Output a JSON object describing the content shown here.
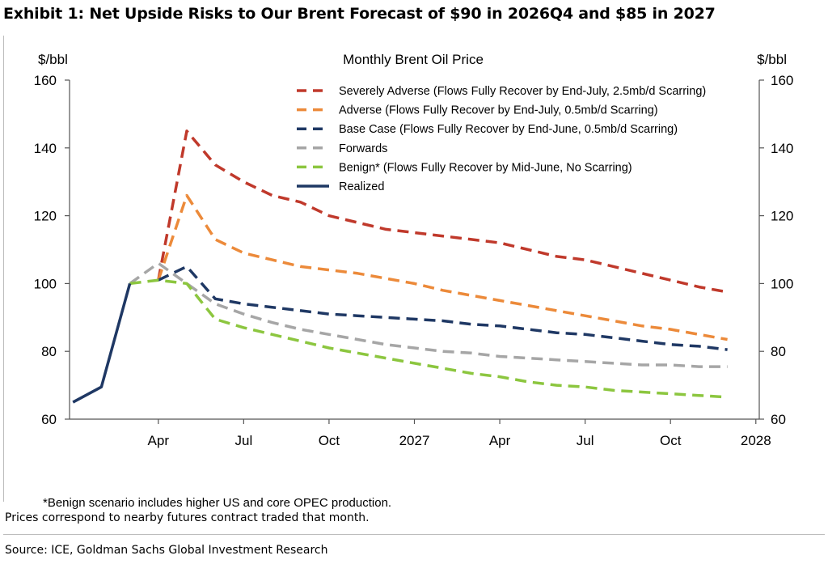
{
  "exhibit_title": "Exhibit 1: Net Upside Risks to Our Brent Forecast of $90 in 2026Q4 and $85 in 2027",
  "footnote": "*Benign scenario includes higher US and core OPEC production.",
  "note": "Prices correspond to nearby futures contract traded that month.",
  "source": "Source: ICE, Goldman Sachs Global Investment Research",
  "chart_data": {
    "type": "line",
    "title": "Monthly Brent Oil Price",
    "ylabel_left": "$/bbl",
    "ylabel_right": "$/bbl",
    "ylim": [
      60,
      160
    ],
    "yticks": [
      60,
      80,
      100,
      120,
      140,
      160
    ],
    "xlim": [
      "2026-01",
      "2028-01"
    ],
    "xticks": [
      {
        "month": "2026-04",
        "label": "Apr"
      },
      {
        "month": "2026-07",
        "label": "Jul"
      },
      {
        "month": "2026-10",
        "label": "Oct"
      },
      {
        "month": "2027-01",
        "label": "2027"
      },
      {
        "month": "2027-04",
        "label": "Apr"
      },
      {
        "month": "2027-07",
        "label": "Jul"
      },
      {
        "month": "2027-10",
        "label": "Oct"
      },
      {
        "month": "2028-01",
        "label": "2028"
      }
    ],
    "grid": false,
    "legend_position": "top-right",
    "series": [
      {
        "name": "Severely Adverse (Flows Fully Recover by End-July, 2.5mb/d Scarring)",
        "color": "#c0392b",
        "style": "dashed",
        "x": [
          "2026-04",
          "2026-05",
          "2026-06",
          "2026-07",
          "2026-08",
          "2026-09",
          "2026-10",
          "2026-11",
          "2026-12",
          "2027-01",
          "2027-02",
          "2027-03",
          "2027-04",
          "2027-05",
          "2027-06",
          "2027-07",
          "2027-08",
          "2027-09",
          "2027-10",
          "2027-11",
          "2027-12"
        ],
        "y": [
          101,
          145,
          135,
          130,
          126,
          124,
          120,
          118,
          116,
          115,
          114,
          113,
          112,
          110,
          108,
          107,
          105,
          103,
          101,
          99,
          97.5
        ]
      },
      {
        "name": "Adverse (Flows Fully Recover by End-July, 0.5mb/d Scarring)",
        "color": "#ec8a3a",
        "style": "dashed",
        "x": [
          "2026-04",
          "2026-05",
          "2026-06",
          "2026-07",
          "2026-08",
          "2026-09",
          "2026-10",
          "2026-11",
          "2026-12",
          "2027-01",
          "2027-02",
          "2027-03",
          "2027-04",
          "2027-05",
          "2027-06",
          "2027-07",
          "2027-08",
          "2027-09",
          "2027-10",
          "2027-11",
          "2027-12"
        ],
        "y": [
          101,
          126,
          113,
          109,
          107,
          105,
          104,
          103,
          101.5,
          100,
          98,
          96.5,
          95,
          93.5,
          92,
          90.5,
          89,
          87.5,
          86.5,
          85,
          83.5
        ]
      },
      {
        "name": "Base Case (Flows Fully Recover by End-June, 0.5mb/d Scarring)",
        "color": "#1f3864",
        "style": "dashed",
        "x": [
          "2026-04",
          "2026-05",
          "2026-06",
          "2026-07",
          "2026-08",
          "2026-09",
          "2026-10",
          "2026-11",
          "2026-12",
          "2027-01",
          "2027-02",
          "2027-03",
          "2027-04",
          "2027-05",
          "2027-06",
          "2027-07",
          "2027-08",
          "2027-09",
          "2027-10",
          "2027-11",
          "2027-12"
        ],
        "y": [
          101,
          105,
          95.5,
          94,
          93,
          92,
          91,
          90.5,
          90,
          89.5,
          89,
          88,
          87.5,
          86.5,
          85.5,
          85,
          84,
          83,
          82,
          81.5,
          80.5
        ]
      },
      {
        "name": "Forwards",
        "color": "#a6a6a6",
        "style": "dashed",
        "x": [
          "2026-03",
          "2026-04",
          "2026-05",
          "2026-06",
          "2026-07",
          "2026-08",
          "2026-09",
          "2026-10",
          "2026-11",
          "2026-12",
          "2027-01",
          "2027-02",
          "2027-03",
          "2027-04",
          "2027-05",
          "2027-06",
          "2027-07",
          "2027-08",
          "2027-09",
          "2027-10",
          "2027-11",
          "2027-12"
        ],
        "y": [
          100,
          106,
          100,
          94,
          91,
          88.5,
          86.5,
          85,
          83.5,
          82,
          81,
          80,
          79.5,
          78.5,
          78,
          77.5,
          77,
          76.5,
          76,
          76,
          75.5,
          75.5
        ]
      },
      {
        "name": "Benign* (Flows Fully Recover by Mid-June, No Scarring)",
        "color": "#8cc63f",
        "style": "dashed",
        "x": [
          "2026-03",
          "2026-04",
          "2026-05",
          "2026-06",
          "2026-07",
          "2026-08",
          "2026-09",
          "2026-10",
          "2026-11",
          "2026-12",
          "2027-01",
          "2027-02",
          "2027-03",
          "2027-04",
          "2027-05",
          "2027-06",
          "2027-07",
          "2027-08",
          "2027-09",
          "2027-10",
          "2027-11",
          "2027-12"
        ],
        "y": [
          100,
          101,
          100,
          89.5,
          87,
          85,
          83,
          81,
          79.5,
          78,
          76.5,
          75,
          73.5,
          72.5,
          71,
          70,
          69.5,
          68.5,
          68,
          67.5,
          67,
          66.5
        ]
      },
      {
        "name": "Realized",
        "color": "#1f3864",
        "style": "solid",
        "x": [
          "2026-01",
          "2026-02",
          "2026-03"
        ],
        "y": [
          65,
          69.5,
          100
        ]
      }
    ]
  }
}
